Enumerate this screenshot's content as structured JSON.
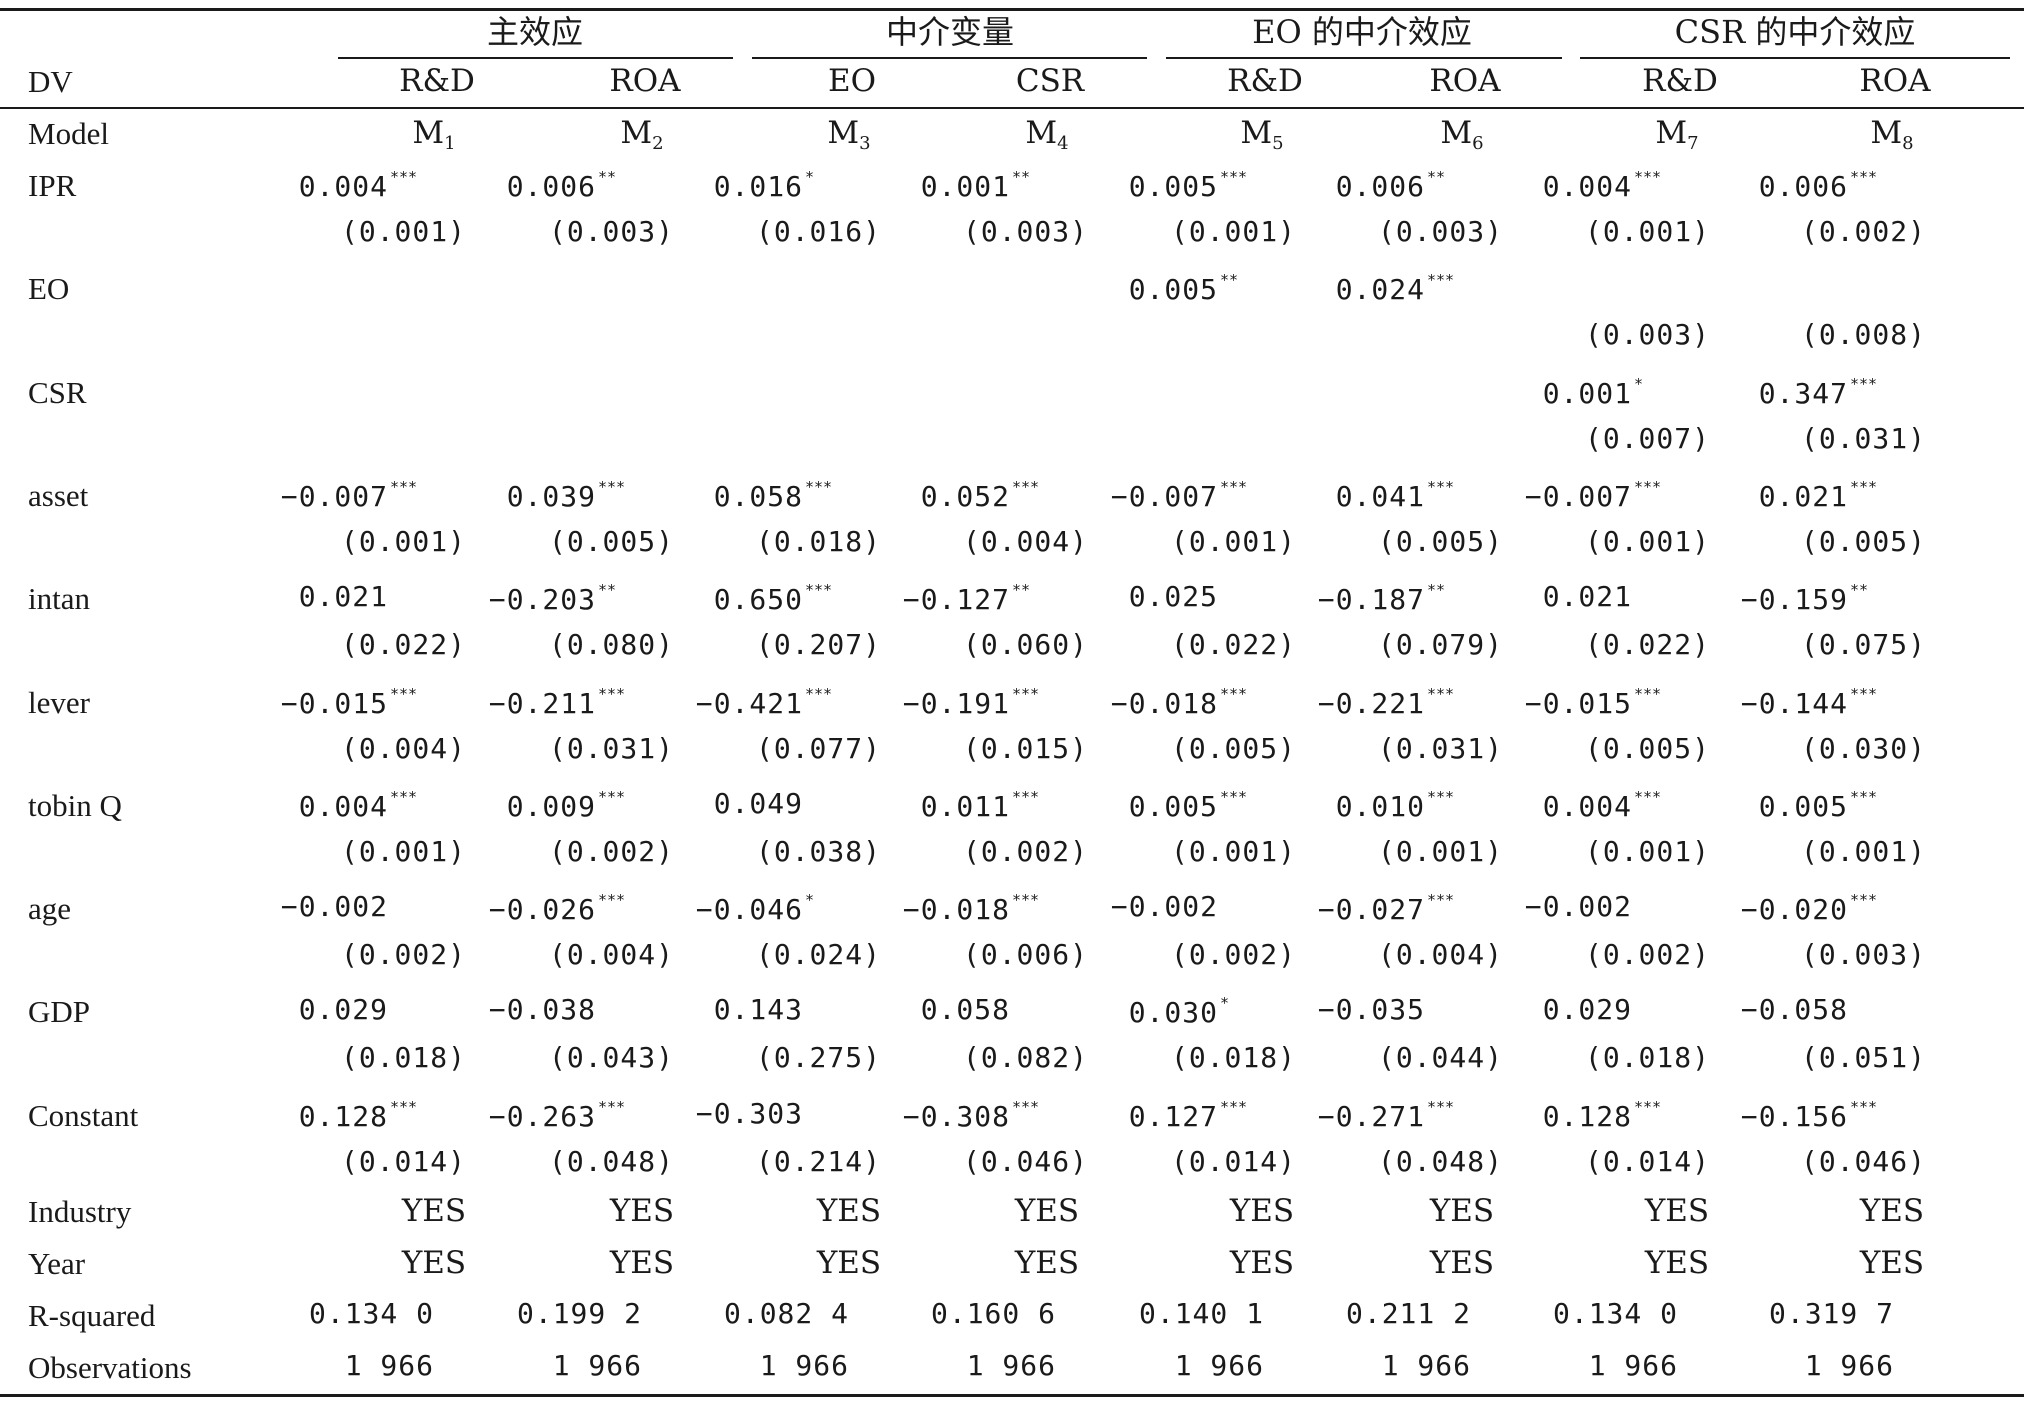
{
  "group_headers": [
    "主效应",
    "中介变量",
    "EO 的中介效应",
    "CSR 的中介效应"
  ],
  "dv": {
    "label": "DV",
    "values": [
      "R&D",
      "ROA",
      "EO",
      "CSR",
      "R&D",
      "ROA",
      "R&D",
      "ROA"
    ]
  },
  "model": {
    "label": "Model",
    "values": [
      {
        "base": "M",
        "sub": "1"
      },
      {
        "base": "M",
        "sub": "2"
      },
      {
        "base": "M",
        "sub": "3"
      },
      {
        "base": "M",
        "sub": "4"
      },
      {
        "base": "M",
        "sub": "5"
      },
      {
        "base": "M",
        "sub": "6"
      },
      {
        "base": "M",
        "sub": "7"
      },
      {
        "base": "M",
        "sub": "8"
      }
    ]
  },
  "rows": [
    {
      "label": "IPR",
      "coef": [
        {
          "v": "0.004",
          "s": "***"
        },
        {
          "v": "0.006",
          "s": "**"
        },
        {
          "v": "0.016",
          "s": "*"
        },
        {
          "v": "0.001",
          "s": "**"
        },
        {
          "v": "0.005",
          "s": "***"
        },
        {
          "v": "0.006",
          "s": "**"
        },
        {
          "v": "0.004",
          "s": "***"
        },
        {
          "v": "0.006",
          "s": "***"
        }
      ],
      "se": [
        "(0.001)",
        "(0.003)",
        "(0.016)",
        "(0.003)",
        "(0.001)",
        "(0.003)",
        "(0.001)",
        "(0.002)"
      ]
    },
    {
      "label": "EO",
      "coef": [
        null,
        null,
        null,
        null,
        {
          "v": "0.005",
          "s": "**"
        },
        {
          "v": "0.024",
          "s": "***"
        },
        null,
        null
      ],
      "se": [
        null,
        null,
        null,
        null,
        null,
        null,
        "(0.003)",
        "(0.008)"
      ]
    },
    {
      "label": "CSR",
      "coef": [
        null,
        null,
        null,
        null,
        null,
        null,
        {
          "v": "0.001",
          "s": "*"
        },
        {
          "v": "0.347",
          "s": "***"
        }
      ],
      "se": [
        null,
        null,
        null,
        null,
        null,
        null,
        "(0.007)",
        "(0.031)"
      ]
    },
    {
      "label": "asset",
      "coef": [
        {
          "v": "−0.007",
          "s": "***"
        },
        {
          "v": "0.039",
          "s": "***"
        },
        {
          "v": "0.058",
          "s": "***"
        },
        {
          "v": "0.052",
          "s": "***"
        },
        {
          "v": "−0.007",
          "s": "***"
        },
        {
          "v": "0.041",
          "s": "***"
        },
        {
          "v": "−0.007",
          "s": "***"
        },
        {
          "v": "0.021",
          "s": "***"
        }
      ],
      "se": [
        "(0.001)",
        "(0.005)",
        "(0.018)",
        "(0.004)",
        "(0.001)",
        "(0.005)",
        "(0.001)",
        "(0.005)"
      ]
    },
    {
      "label": "intan",
      "coef": [
        {
          "v": "0.021",
          "s": ""
        },
        {
          "v": "−0.203",
          "s": "**"
        },
        {
          "v": "0.650",
          "s": "***"
        },
        {
          "v": "−0.127",
          "s": "**"
        },
        {
          "v": "0.025",
          "s": ""
        },
        {
          "v": "−0.187",
          "s": "**"
        },
        {
          "v": "0.021",
          "s": ""
        },
        {
          "v": "−0.159",
          "s": "**"
        }
      ],
      "se": [
        "(0.022)",
        "(0.080)",
        "(0.207)",
        "(0.060)",
        "(0.022)",
        "(0.079)",
        "(0.022)",
        "(0.075)"
      ]
    },
    {
      "label": "lever",
      "coef": [
        {
          "v": "−0.015",
          "s": "***"
        },
        {
          "v": "−0.211",
          "s": "***"
        },
        {
          "v": "−0.421",
          "s": "***"
        },
        {
          "v": "−0.191",
          "s": "***"
        },
        {
          "v": "−0.018",
          "s": "***"
        },
        {
          "v": "−0.221",
          "s": "***"
        },
        {
          "v": "−0.015",
          "s": "***"
        },
        {
          "v": "−0.144",
          "s": "***"
        }
      ],
      "se": [
        "(0.004)",
        "(0.031)",
        "(0.077)",
        "(0.015)",
        "(0.005)",
        "(0.031)",
        "(0.005)",
        "(0.030)"
      ]
    },
    {
      "label": "tobin Q",
      "coef": [
        {
          "v": "0.004",
          "s": "***"
        },
        {
          "v": "0.009",
          "s": "***"
        },
        {
          "v": "0.049",
          "s": ""
        },
        {
          "v": "0.011",
          "s": "***"
        },
        {
          "v": "0.005",
          "s": "***"
        },
        {
          "v": "0.010",
          "s": "***"
        },
        {
          "v": "0.004",
          "s": "***"
        },
        {
          "v": "0.005",
          "s": "***"
        }
      ],
      "se": [
        "(0.001)",
        "(0.002)",
        "(0.038)",
        "(0.002)",
        "(0.001)",
        "(0.001)",
        "(0.001)",
        "(0.001)"
      ]
    },
    {
      "label": "age",
      "coef": [
        {
          "v": "−0.002",
          "s": ""
        },
        {
          "v": "−0.026",
          "s": "***"
        },
        {
          "v": "−0.046",
          "s": "*"
        },
        {
          "v": "−0.018",
          "s": "***"
        },
        {
          "v": "−0.002",
          "s": ""
        },
        {
          "v": "−0.027",
          "s": "***"
        },
        {
          "v": "−0.002",
          "s": ""
        },
        {
          "v": "−0.020",
          "s": "***"
        }
      ],
      "se": [
        "(0.002)",
        "(0.004)",
        "(0.024)",
        "(0.006)",
        "(0.002)",
        "(0.004)",
        "(0.002)",
        "(0.003)"
      ]
    },
    {
      "label": "GDP",
      "coef": [
        {
          "v": "0.029",
          "s": ""
        },
        {
          "v": "−0.038",
          "s": ""
        },
        {
          "v": "0.143",
          "s": ""
        },
        {
          "v": "0.058",
          "s": ""
        },
        {
          "v": "0.030",
          "s": "*"
        },
        {
          "v": "−0.035",
          "s": ""
        },
        {
          "v": "0.029",
          "s": ""
        },
        {
          "v": "−0.058",
          "s": ""
        }
      ],
      "se": [
        "(0.018)",
        "(0.043)",
        "(0.275)",
        "(0.082)",
        "(0.018)",
        "(0.044)",
        "(0.018)",
        "(0.051)"
      ]
    },
    {
      "label": "Constant",
      "coef": [
        {
          "v": "0.128",
          "s": "***"
        },
        {
          "v": "−0.263",
          "s": "***"
        },
        {
          "v": "−0.303",
          "s": ""
        },
        {
          "v": "−0.308",
          "s": "***"
        },
        {
          "v": "0.127",
          "s": "***"
        },
        {
          "v": "−0.271",
          "s": "***"
        },
        {
          "v": "0.128",
          "s": "***"
        },
        {
          "v": "−0.156",
          "s": "***"
        }
      ],
      "se": [
        "(0.014)",
        "(0.048)",
        "(0.214)",
        "(0.046)",
        "(0.014)",
        "(0.048)",
        "(0.014)",
        "(0.046)"
      ]
    }
  ],
  "footer_rows": [
    {
      "label": "Industry",
      "values": [
        "YES",
        "YES",
        "YES",
        "YES",
        "YES",
        "YES",
        "YES",
        "YES"
      ]
    },
    {
      "label": "Year",
      "values": [
        "YES",
        "YES",
        "YES",
        "YES",
        "YES",
        "YES",
        "YES",
        "YES"
      ]
    },
    {
      "label": "R-squared",
      "values": [
        "0.134 0",
        "0.199 2",
        "0.082 4",
        "0.160 6",
        "0.140 1",
        "0.211 2",
        "0.134 0",
        "0.319 7"
      ]
    },
    {
      "label": "Observations",
      "values": [
        "1 966",
        "1 966",
        "1 966",
        "1 966",
        "1 966",
        "1 966",
        "1 966",
        "1 966"
      ]
    }
  ]
}
